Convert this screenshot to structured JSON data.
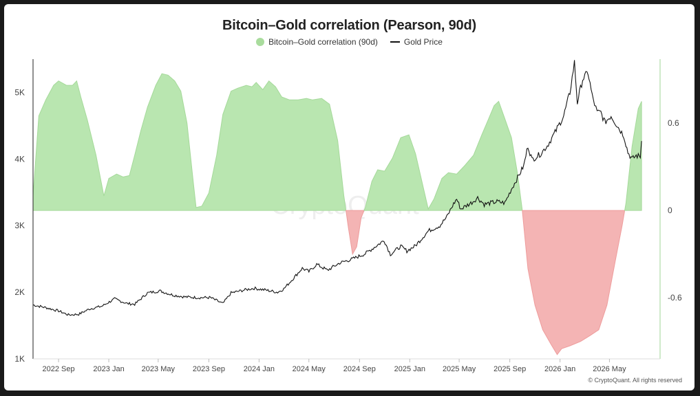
{
  "chart_data": {
    "type": "area",
    "title": "Bitcoin–Gold correlation (Pearson, 90d)",
    "legend_position": "top-center",
    "left_axis": {
      "ticks": [
        "1K",
        "2K",
        "3K",
        "4K",
        "5K"
      ],
      "values": [
        1000,
        2000,
        3000,
        4000,
        5000
      ],
      "range": [
        1000,
        5500
      ]
    },
    "right_axis": {
      "ticks": [
        "-0.6",
        "0",
        "0.6"
      ],
      "values": [
        -0.6,
        0,
        0.6
      ],
      "range": [
        -1.02,
        1.04
      ]
    },
    "x_axis": {
      "start": "2022-07-01",
      "end": "2026-09-01",
      "ticks": [
        {
          "label": "2022 Sep",
          "date": "2022-09-01"
        },
        {
          "label": "2023 Jan",
          "date": "2023-01-01"
        },
        {
          "label": "2023 May",
          "date": "2023-05-01"
        },
        {
          "label": "2023 Sep",
          "date": "2023-09-01"
        },
        {
          "label": "2024 Jan",
          "date": "2024-01-01"
        },
        {
          "label": "2024 May",
          "date": "2024-05-01"
        },
        {
          "label": "2024 Sep",
          "date": "2024-09-01"
        },
        {
          "label": "2025 Jan",
          "date": "2025-01-01"
        },
        {
          "label": "2025 May",
          "date": "2025-05-01"
        },
        {
          "label": "2025 Sep",
          "date": "2025-09-01"
        },
        {
          "label": "2026 Jan",
          "date": "2026-01-01"
        },
        {
          "label": "2026 May",
          "date": "2026-05-01"
        }
      ]
    },
    "series": [
      {
        "name": "Bitcoin–Gold correlation (90d)",
        "axis": "right",
        "positive_color": "#b9e6b0",
        "negative_color": "#f4b4b4",
        "points": [
          [
            "2022-07-01",
            0.1
          ],
          [
            "2022-07-15",
            0.65
          ],
          [
            "2022-08-01",
            0.76
          ],
          [
            "2022-08-20",
            0.86
          ],
          [
            "2022-09-01",
            0.89
          ],
          [
            "2022-09-20",
            0.86
          ],
          [
            "2022-10-05",
            0.86
          ],
          [
            "2022-10-15",
            0.89
          ],
          [
            "2022-10-25",
            0.78
          ],
          [
            "2022-11-10",
            0.62
          ],
          [
            "2022-12-01",
            0.38
          ],
          [
            "2022-12-20",
            0.1
          ],
          [
            "2023-01-01",
            0.22
          ],
          [
            "2023-01-20",
            0.25
          ],
          [
            "2023-02-05",
            0.23
          ],
          [
            "2023-02-20",
            0.24
          ],
          [
            "2023-03-05",
            0.38
          ],
          [
            "2023-03-20",
            0.55
          ],
          [
            "2023-04-05",
            0.71
          ],
          [
            "2023-04-25",
            0.86
          ],
          [
            "2023-05-10",
            0.94
          ],
          [
            "2023-05-25",
            0.93
          ],
          [
            "2023-06-10",
            0.89
          ],
          [
            "2023-06-25",
            0.82
          ],
          [
            "2023-07-10",
            0.6
          ],
          [
            "2023-07-25",
            0.2
          ],
          [
            "2023-08-01",
            0.02
          ],
          [
            "2023-08-15",
            0.03
          ],
          [
            "2023-09-01",
            0.12
          ],
          [
            "2023-09-20",
            0.38
          ],
          [
            "2023-10-05",
            0.66
          ],
          [
            "2023-10-25",
            0.82
          ],
          [
            "2023-11-10",
            0.84
          ],
          [
            "2023-12-01",
            0.86
          ],
          [
            "2023-12-15",
            0.85
          ],
          [
            "2023-12-25",
            0.88
          ],
          [
            "2024-01-10",
            0.83
          ],
          [
            "2024-01-25",
            0.89
          ],
          [
            "2024-02-10",
            0.85
          ],
          [
            "2024-02-25",
            0.78
          ],
          [
            "2024-03-15",
            0.76
          ],
          [
            "2024-04-05",
            0.76
          ],
          [
            "2024-04-25",
            0.77
          ],
          [
            "2024-05-10",
            0.76
          ],
          [
            "2024-06-01",
            0.77
          ],
          [
            "2024-06-20",
            0.73
          ],
          [
            "2024-07-10",
            0.48
          ],
          [
            "2024-07-25",
            0.1
          ],
          [
            "2024-08-05",
            -0.12
          ],
          [
            "2024-08-15",
            -0.3
          ],
          [
            "2024-08-25",
            -0.25
          ],
          [
            "2024-09-05",
            -0.05
          ],
          [
            "2024-09-15",
            0.02
          ],
          [
            "2024-10-01",
            0.2
          ],
          [
            "2024-10-15",
            0.28
          ],
          [
            "2024-11-01",
            0.27
          ],
          [
            "2024-11-20",
            0.36
          ],
          [
            "2024-12-10",
            0.5
          ],
          [
            "2024-12-30",
            0.52
          ],
          [
            "2025-01-15",
            0.39
          ],
          [
            "2025-02-01",
            0.18
          ],
          [
            "2025-02-15",
            0.01
          ],
          [
            "2025-03-01",
            0.08
          ],
          [
            "2025-03-20",
            0.22
          ],
          [
            "2025-04-05",
            0.26
          ],
          [
            "2025-04-25",
            0.25
          ],
          [
            "2025-05-15",
            0.31
          ],
          [
            "2025-06-05",
            0.38
          ],
          [
            "2025-06-25",
            0.52
          ],
          [
            "2025-07-10",
            0.62
          ],
          [
            "2025-07-25",
            0.72
          ],
          [
            "2025-08-05",
            0.75
          ],
          [
            "2025-08-20",
            0.63
          ],
          [
            "2025-09-05",
            0.5
          ],
          [
            "2025-09-20",
            0.25
          ],
          [
            "2025-10-01",
            0.01
          ],
          [
            "2025-10-15",
            -0.4
          ],
          [
            "2025-11-01",
            -0.65
          ],
          [
            "2025-11-20",
            -0.82
          ],
          [
            "2025-12-10",
            -0.92
          ],
          [
            "2025-12-25",
            -0.99
          ],
          [
            "2026-01-05",
            -0.95
          ],
          [
            "2026-01-25",
            -0.93
          ],
          [
            "2026-02-20",
            -0.9
          ],
          [
            "2026-03-15",
            -0.86
          ],
          [
            "2026-04-05",
            -0.82
          ],
          [
            "2026-04-25",
            -0.65
          ],
          [
            "2026-05-15",
            -0.35
          ],
          [
            "2026-06-01",
            -0.1
          ],
          [
            "2026-06-10",
            0.05
          ],
          [
            "2026-06-25",
            0.44
          ],
          [
            "2026-07-10",
            0.7
          ],
          [
            "2026-07-18",
            0.75
          ]
        ]
      },
      {
        "name": "Gold Price",
        "axis": "left",
        "color": "#111111",
        "points": [
          [
            "2022-07-01",
            1810
          ],
          [
            "2022-08-01",
            1770
          ],
          [
            "2022-09-01",
            1720
          ],
          [
            "2022-09-25",
            1660
          ],
          [
            "2022-10-20",
            1670
          ],
          [
            "2022-11-15",
            1750
          ],
          [
            "2022-12-15",
            1790
          ],
          [
            "2023-01-15",
            1900
          ],
          [
            "2023-02-15",
            1830
          ],
          [
            "2023-03-05",
            1820
          ],
          [
            "2023-04-05",
            1990
          ],
          [
            "2023-05-05",
            2020
          ],
          [
            "2023-06-05",
            1960
          ],
          [
            "2023-07-05",
            1930
          ],
          [
            "2023-08-05",
            1920
          ],
          [
            "2023-09-05",
            1920
          ],
          [
            "2023-10-05",
            1830
          ],
          [
            "2023-10-25",
            1990
          ],
          [
            "2023-12-01",
            2040
          ],
          [
            "2023-12-20",
            2060
          ],
          [
            "2024-01-20",
            2030
          ],
          [
            "2024-02-15",
            2000
          ],
          [
            "2024-03-01",
            2050
          ],
          [
            "2024-03-20",
            2180
          ],
          [
            "2024-04-15",
            2360
          ],
          [
            "2024-05-01",
            2310
          ],
          [
            "2024-05-20",
            2420
          ],
          [
            "2024-06-15",
            2330
          ],
          [
            "2024-07-15",
            2440
          ],
          [
            "2024-08-15",
            2500
          ],
          [
            "2024-09-15",
            2580
          ],
          [
            "2024-10-15",
            2710
          ],
          [
            "2024-10-31",
            2780
          ],
          [
            "2024-11-15",
            2570
          ],
          [
            "2024-12-10",
            2690
          ],
          [
            "2024-12-25",
            2620
          ],
          [
            "2025-01-15",
            2700
          ],
          [
            "2025-02-15",
            2920
          ],
          [
            "2025-03-15",
            3000
          ],
          [
            "2025-04-01",
            3130
          ],
          [
            "2025-04-15",
            3300
          ],
          [
            "2025-04-25",
            3400
          ],
          [
            "2025-05-05",
            3250
          ],
          [
            "2025-06-01",
            3350
          ],
          [
            "2025-06-15",
            3420
          ],
          [
            "2025-07-01",
            3320
          ],
          [
            "2025-08-01",
            3360
          ],
          [
            "2025-08-20",
            3340
          ],
          [
            "2025-09-05",
            3550
          ],
          [
            "2025-09-20",
            3720
          ],
          [
            "2025-10-05",
            3900
          ],
          [
            "2025-10-15",
            4200
          ],
          [
            "2025-10-25",
            3990
          ],
          [
            "2025-11-15",
            4080
          ],
          [
            "2025-12-01",
            4200
          ],
          [
            "2025-12-20",
            4400
          ],
          [
            "2026-01-10",
            4650
          ],
          [
            "2026-01-25",
            5000
          ],
          [
            "2026-02-05",
            5450
          ],
          [
            "2026-02-12",
            4850
          ],
          [
            "2026-02-25",
            5200
          ],
          [
            "2026-03-10",
            5300
          ],
          [
            "2026-03-20",
            4950
          ],
          [
            "2026-04-01",
            4700
          ],
          [
            "2026-04-10",
            4700
          ],
          [
            "2026-04-20",
            4550
          ],
          [
            "2026-05-05",
            4650
          ],
          [
            "2026-05-20",
            4500
          ],
          [
            "2026-06-05",
            4350
          ],
          [
            "2026-06-15",
            4100
          ],
          [
            "2026-06-25",
            4000
          ],
          [
            "2026-07-05",
            4050
          ],
          [
            "2026-07-15",
            4040
          ],
          [
            "2026-07-18",
            4270
          ]
        ]
      }
    ],
    "watermark": "CryptoQuant",
    "copyright": "© CryptoQuant. All rights reserved"
  }
}
